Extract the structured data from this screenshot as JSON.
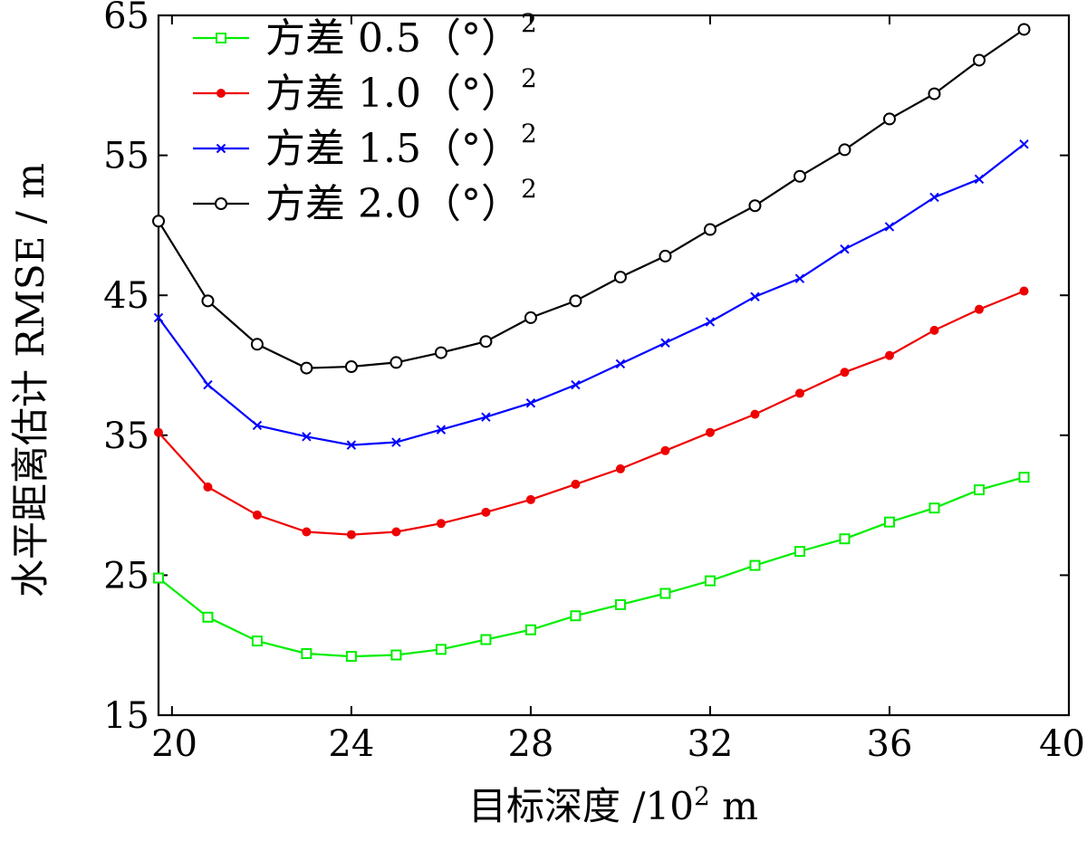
{
  "chart_data": {
    "type": "line",
    "title": "",
    "xlabel": "目标深度 /10² m",
    "xlabel_parts": {
      "prefix": "目标深度 /10",
      "sup": "2",
      "suffix": " m"
    },
    "ylabel": "水平距离估计 RMSE / m",
    "xlim": [
      19.7,
      40
    ],
    "ylim": [
      15,
      65
    ],
    "xticks": [
      20,
      24,
      28,
      32,
      36,
      40
    ],
    "yticks": [
      15,
      25,
      35,
      45,
      55,
      65
    ],
    "grid": false,
    "legend_position": "top-left",
    "x": [
      19.7,
      20.8,
      21.9,
      23,
      24,
      25,
      26,
      27,
      28,
      29,
      30,
      31,
      32,
      33,
      34,
      35,
      36,
      37,
      38,
      39
    ],
    "series": [
      {
        "name": "方差 0.5（°）²",
        "name_parts": {
          "prefix": "方差 0.5（°）",
          "sup": "2"
        },
        "color": "#00ee00",
        "marker": "square",
        "values": [
          24.8,
          22.0,
          20.3,
          19.4,
          19.2,
          19.3,
          19.7,
          20.4,
          21.1,
          22.1,
          22.9,
          23.7,
          24.6,
          25.7,
          26.7,
          27.6,
          28.8,
          29.8,
          31.1,
          32.0
        ]
      },
      {
        "name": "方差 1.0（°）²",
        "name_parts": {
          "prefix": "方差 1.0（°）",
          "sup": "2"
        },
        "color": "#ee0000",
        "marker": "dot",
        "values": [
          35.2,
          31.3,
          29.3,
          28.1,
          27.9,
          28.1,
          28.7,
          29.5,
          30.4,
          31.5,
          32.6,
          33.9,
          35.2,
          36.5,
          38.0,
          39.5,
          40.7,
          42.5,
          44.0,
          45.3
        ]
      },
      {
        "name": "方差 1.5（°）²",
        "name_parts": {
          "prefix": "方差 1.5（°）",
          "sup": "2"
        },
        "color": "#0000ff",
        "marker": "x",
        "values": [
          43.4,
          38.6,
          35.7,
          34.9,
          34.3,
          34.5,
          35.4,
          36.3,
          37.3,
          38.6,
          40.1,
          41.6,
          43.1,
          44.9,
          46.2,
          48.3,
          49.9,
          52.0,
          53.3,
          55.8
        ]
      },
      {
        "name": "方差 2.0（°）²",
        "name_parts": {
          "prefix": "方差 2.0（°）",
          "sup": "2"
        },
        "color": "#000000",
        "marker": "circle",
        "values": [
          50.3,
          44.6,
          41.5,
          39.8,
          39.9,
          40.2,
          40.9,
          41.7,
          43.4,
          44.6,
          46.3,
          47.8,
          49.7,
          51.4,
          53.5,
          55.4,
          57.6,
          59.4,
          61.8,
          64.0
        ]
      }
    ]
  }
}
